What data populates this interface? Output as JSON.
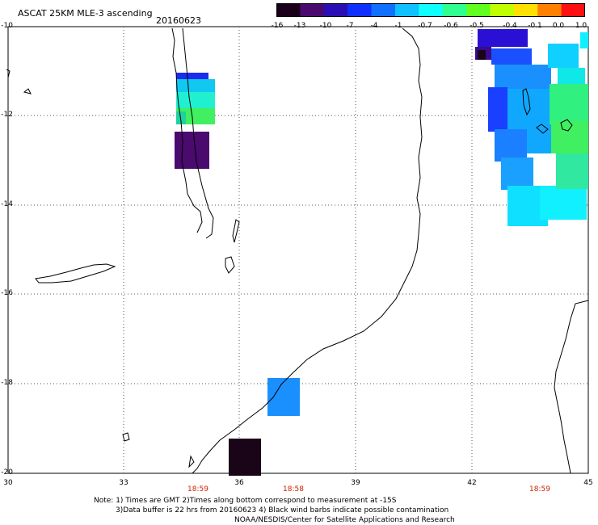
{
  "header": {
    "title": "ASCAT 25KM MLE-3 ascending",
    "date": "20160623"
  },
  "colorbar": {
    "labels": [
      "-16",
      "-13",
      "-10",
      "-7",
      "-4",
      "-1",
      "-0.7",
      "-0.6",
      "-0.5",
      "-0.4",
      "-0.1",
      "0.0",
      "1.0"
    ],
    "colors": [
      "#1a0018",
      "#4a0a6e",
      "#2a10b4",
      "#1030ff",
      "#1070ff",
      "#10c0ff",
      "#10ffff",
      "#30ff90",
      "#60ff20",
      "#c0ff00",
      "#ffe000",
      "#ff8000",
      "#ff1010"
    ]
  },
  "axes": {
    "lat_labels": [
      "-10",
      "-12",
      "-14",
      "-16",
      "-18",
      "-20"
    ],
    "lon_labels": [
      "30",
      "33",
      "36",
      "39",
      "42",
      "45"
    ],
    "time_labels": [
      "18:59",
      "18:58",
      "18:59"
    ]
  },
  "notes": {
    "line1": "Note: 1) Times are GMT 2)Times along bottom correspond to measurement at -15S",
    "line2": "3)Data buffer is 22 hrs from 20160623 4) Black wind barbs indicate possible contamination",
    "line3": "NOAA/NESDIS/Center for Satellite Applications and Research"
  }
}
